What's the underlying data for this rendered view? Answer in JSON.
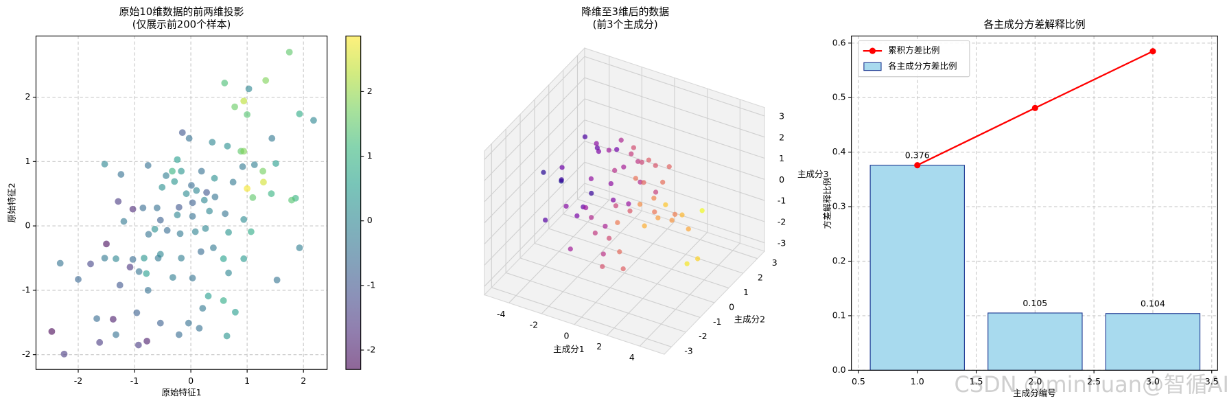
{
  "watermark": "CSDN @minhuan@智循AI",
  "chart_data": [
    {
      "type": "scatter",
      "title": [
        "原始10维数据的前两维投影",
        "(仅展示前200个样本)"
      ],
      "xlabel": "原始特征1",
      "ylabel": "原始特征2",
      "x": [
        1.75,
        1.33,
        1.03,
        0.6,
        0.94,
        0.78,
        1.0,
        1.93,
        2.18,
        1.44,
        -0.03,
        -0.15,
        0.38,
        0.65,
        0.89,
        0.94,
        -0.24,
        -1.53,
        -0.76,
        1.13,
        1.51,
        0.92,
        -0.33,
        -0.17,
        -1.24,
        0.19,
        1.28,
        1.29,
        1.0,
        -0.44,
        0.42,
        0.01,
        0.28,
        0.75,
        -0.51,
        -0.29,
        -0.08,
        0.1,
        0.43,
        -1.29,
        -1.03,
        -0.85,
        -0.6,
        -0.21,
        0.03,
        0.24,
        1.1,
        1.43,
        1.86,
        1.79,
        -1.19,
        -0.54,
        -0.24,
        0.03,
        0.33,
        0.61,
        0.94,
        -0.75,
        -0.64,
        -0.42,
        -0.19,
        0.08,
        0.26,
        0.67,
        1.07,
        -2.32,
        -1.53,
        -1.33,
        -1.03,
        -0.83,
        -0.58,
        -0.54,
        -0.17,
        0.18,
        0.4,
        0.58,
        0.94,
        1.93,
        -1.78,
        -1.5,
        -1.08,
        -0.92,
        -0.79,
        -0.32,
        0.03,
        0.67,
        -2.0,
        -1.26,
        -0.76,
        0.31,
        0.58,
        0.79,
        1.53,
        -2.47,
        -2.25,
        -1.67,
        -1.62,
        -1.38,
        -1.33,
        -0.93,
        -0.78,
        -0.54,
        -0.21,
        -0.04,
        0.21,
        0.64,
        -0.96,
        0.15
      ],
      "y": [
        2.7,
        2.26,
        2.13,
        2.22,
        1.94,
        1.85,
        1.73,
        1.74,
        1.64,
        1.36,
        1.36,
        1.45,
        1.3,
        1.24,
        1.16,
        1.16,
        1.03,
        0.96,
        0.94,
        0.95,
        0.97,
        0.92,
        0.85,
        0.85,
        0.8,
        0.85,
        0.85,
        0.68,
        0.58,
        0.78,
        0.74,
        0.63,
        0.52,
        0.68,
        0.6,
        0.69,
        0.5,
        0.55,
        0.45,
        0.38,
        0.26,
        0.28,
        0.28,
        0.29,
        0.36,
        0.4,
        0.44,
        0.5,
        0.43,
        0.4,
        0.07,
        0.09,
        0.17,
        0.15,
        0.23,
        0.19,
        0.1,
        -0.13,
        -0.05,
        -0.07,
        -0.12,
        -0.09,
        -0.04,
        -0.1,
        -0.09,
        -0.58,
        -0.5,
        -0.51,
        -0.52,
        -0.5,
        -0.5,
        -0.44,
        -0.5,
        -0.4,
        -0.34,
        -0.51,
        -0.51,
        -0.34,
        -0.59,
        -0.28,
        -0.64,
        -0.71,
        -0.74,
        -0.8,
        -0.81,
        -0.73,
        -0.83,
        -0.92,
        -1.0,
        -1.09,
        -1.16,
        -1.34,
        -0.84,
        -1.64,
        -1.99,
        -1.44,
        -1.81,
        -1.45,
        -1.69,
        -1.85,
        -1.79,
        -1.51,
        -1.69,
        -1.51,
        -1.28,
        -1.71,
        -1.35,
        -1.59
      ],
      "c": [
        1.5,
        1.8,
        0,
        1.3,
        2.3,
        1.6,
        1.4,
        0.8,
        0,
        -0.3,
        -0.5,
        -1,
        0,
        0.2,
        1.5,
        1.8,
        0.5,
        0,
        -0.5,
        -0.2,
        0.5,
        -0.3,
        1,
        0.3,
        -0.5,
        -0.5,
        1.7,
        2.5,
        2.8,
        -0.2,
        0.2,
        -0.6,
        -1,
        -0.3,
        0.2,
        0.3,
        0.1,
        0,
        -0.4,
        -1.5,
        -1.8,
        -0.6,
        -0.5,
        -1,
        -0.8,
        0,
        1.5,
        1,
        1,
        1.4,
        -0.3,
        -0.8,
        0,
        -0.5,
        0,
        -0.4,
        0.1,
        -0.4,
        0.2,
        -0.6,
        -0.3,
        -0.1,
        0,
        0.3,
        0.8,
        -0.4,
        -0.3,
        0,
        -0.6,
        0.3,
        -0.3,
        0,
        -0.2,
        -0.6,
        -0.3,
        0.6,
        0.4,
        -0.2,
        -1.3,
        -2.2,
        -1.6,
        -0.4,
        0.5,
        -0.2,
        -0.4,
        0,
        -0.7,
        -1,
        -0.5,
        0.5,
        0.8,
        0.5,
        -0.4,
        -2.3,
        -1.5,
        -0.6,
        -1.5,
        -2,
        -0.5,
        -1.5,
        -2,
        -0.8,
        -0.6,
        -0.5,
        -0.3,
        0.3,
        -0.8,
        -0.5
      ],
      "colormap": "viridis",
      "alpha": 0.6,
      "xlim": [
        -2.75,
        2.42
      ],
      "ylim": [
        -2.23,
        2.95
      ],
      "xticks": [
        -2,
        -1,
        0,
        1,
        2
      ],
      "yticks": [
        -2,
        -1,
        0,
        1,
        2
      ],
      "clim": [
        -2.3,
        2.86
      ],
      "cticks": [
        -2,
        -1,
        0,
        1,
        2
      ],
      "grid": true
    },
    {
      "type": "scatter3d",
      "title": [
        "降维至3维后的数据",
        "(前3个主成分)"
      ],
      "xlabel": "主成分1",
      "ylabel": "主成分2",
      "zlabel": "主成分3",
      "x": [
        -4.3,
        -3.9,
        -3.6,
        -3.5,
        -3.2,
        -3.0,
        -2.8,
        -2.7,
        -2.5,
        -2.4,
        -2.2,
        -2.1,
        -2.0,
        -1.9,
        -1.8,
        -1.7,
        -1.6,
        -1.5,
        -1.4,
        -1.3,
        -1.2,
        -1.1,
        -1.0,
        -0.9,
        -0.8,
        -0.7,
        -0.6,
        -0.5,
        -0.4,
        -0.3,
        -0.2,
        -0.1,
        0.0,
        0.1,
        0.2,
        0.3,
        0.4,
        0.5,
        0.6,
        0.7,
        0.8,
        0.9,
        1.0,
        1.1,
        1.2,
        1.3,
        1.4,
        1.5,
        1.6,
        1.8,
        2.0,
        2.2,
        2.4,
        2.6,
        2.8,
        3.0,
        3.3,
        3.6,
        4.0,
        4.4
      ],
      "y": [
        0.5,
        -1.2,
        1.8,
        -0.4,
        0.9,
        -2.1,
        1.3,
        0.2,
        -1.5,
        2.2,
        -0.8,
        0.6,
        1.5,
        -1.9,
        0.1,
        1.0,
        -0.5,
        2.0,
        -1.1,
        0.4,
        -2.4,
        1.2,
        -0.2,
        0.8,
        -1.4,
        1.9,
        0.0,
        -0.9,
        1.4,
        -1.7,
        0.7,
        2.3,
        -0.6,
        1.1,
        -1.3,
        0.3,
        -2.0,
        1.6,
        -0.3,
        0.9,
        -1.0,
        2.1,
        0.2,
        -1.6,
        1.3,
        -0.7,
        0.5,
        -2.2,
        1.7,
        0.0,
        -1.2,
        0.8,
        -0.4,
        1.5,
        -1.8,
        0.6,
        -0.9,
        1.0,
        -0.2,
        0.4
      ],
      "z": [
        -0.5,
        1.2,
        -1.8,
        0.4,
        1.6,
        -0.2,
        0.9,
        -1.1,
        2.0,
        0.3,
        -0.7,
        1.4,
        -1.5,
        0.6,
        2.2,
        -0.3,
        1.0,
        -1.9,
        0.1,
        1.8,
        -0.9,
        0.5,
        -1.3,
        2.1,
        0.0,
        -0.6,
        1.3,
        -2.0,
        0.8,
        -0.4,
        1.7,
        -1.2,
        0.2,
        1.1,
        -0.8,
        2.4,
        -1.6,
        0.7,
        -0.1,
        1.5,
        -2.3,
        0.4,
        1.0,
        -1.0,
        0.3,
        1.9,
        -0.5,
        0.9,
        -1.4,
        0.6,
        1.2,
        -0.9,
        0.1,
        -1.7,
        0.8,
        -0.3,
        1.3,
        -2.5,
        -1.8,
        0.4
      ],
      "colormap": "plasma",
      "color_by": "x",
      "alpha": 0.7,
      "xlim": [
        -5.5,
        5.5
      ],
      "ylim": [
        -3.5,
        3.5
      ],
      "zlim": [
        -3.4,
        3.4
      ],
      "xticks": [
        -4,
        -2,
        0,
        2,
        4
      ],
      "yticks": [
        -3,
        -2,
        -1,
        0,
        1,
        2,
        3
      ],
      "zticks": [
        -3,
        -2,
        -1,
        0,
        1,
        2,
        3
      ]
    },
    {
      "type": "bar",
      "title": "各主成分方差解释比例",
      "xlabel": "主成分编号",
      "ylabel": "方差解释比例",
      "x": [
        1,
        2,
        3
      ],
      "series": [
        {
          "name": "累积方差比例",
          "type": "line",
          "color": "#ff0000",
          "values": [
            0.376,
            0.481,
            0.585
          ]
        },
        {
          "name": "各主成分方差比例",
          "type": "bar",
          "color": "#a8daee",
          "edgecolor": "#1f3a93",
          "values": [
            0.376,
            0.105,
            0.104
          ]
        }
      ],
      "xlim": [
        0.44,
        3.55
      ],
      "ylim": [
        0,
        0.613
      ],
      "xticks": [
        0.5,
        {
          "value": 1,
          "label": "1.0"
        },
        1.5,
        {
          "value": 2,
          "label": "2.0"
        },
        2.5,
        {
          "value": 3,
          "label": "3.0"
        },
        3.5
      ],
      "yticks": [
        {
          "value": 0,
          "label": "0.0"
        },
        0.1,
        0.2,
        0.3,
        0.4,
        0.5,
        0.6
      ],
      "legend": "upper left",
      "grid": true
    }
  ]
}
